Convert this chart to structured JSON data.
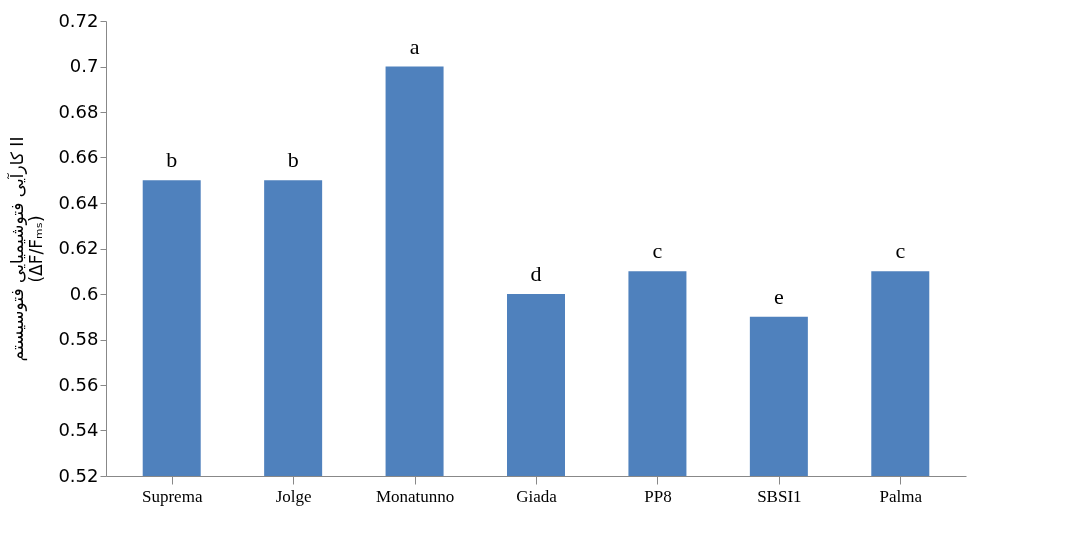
{
  "chart_data": {
    "type": "bar",
    "ylabel": "کارآیی فتوشیمیایی فتوسیستم II (ΔF/Fₘₛ)",
    "categories": [
      "Suprema",
      "Jolge",
      "Monatunno",
      "Giada",
      "PP8",
      "SBSI1",
      "Palma"
    ],
    "values": [
      0.65,
      0.65,
      0.7,
      0.6,
      0.61,
      0.59,
      0.61
    ],
    "color": "#4f81bd",
    "ylim": [
      0.52,
      0.72
    ],
    "yticks": [
      0.52,
      0.54,
      0.56,
      0.58,
      0.6,
      0.62,
      0.64,
      0.66,
      0.68,
      0.7,
      0.72
    ],
    "grid": false,
    "annotations": [
      {
        "text": "b",
        "x": "Suprema",
        "y": 0.65
      },
      {
        "text": "b",
        "x": "Jolge",
        "y": 0.65
      },
      {
        "text": "a",
        "x": "Monatunno",
        "y": 0.7
      },
      {
        "text": "d",
        "x": "Giada",
        "y": 0.6
      },
      {
        "text": "c",
        "x": "PP8",
        "y": 0.61
      },
      {
        "text": "e",
        "x": "SBSI1",
        "y": 0.59
      },
      {
        "text": "c",
        "x": "Palma",
        "y": 0.61
      }
    ]
  }
}
